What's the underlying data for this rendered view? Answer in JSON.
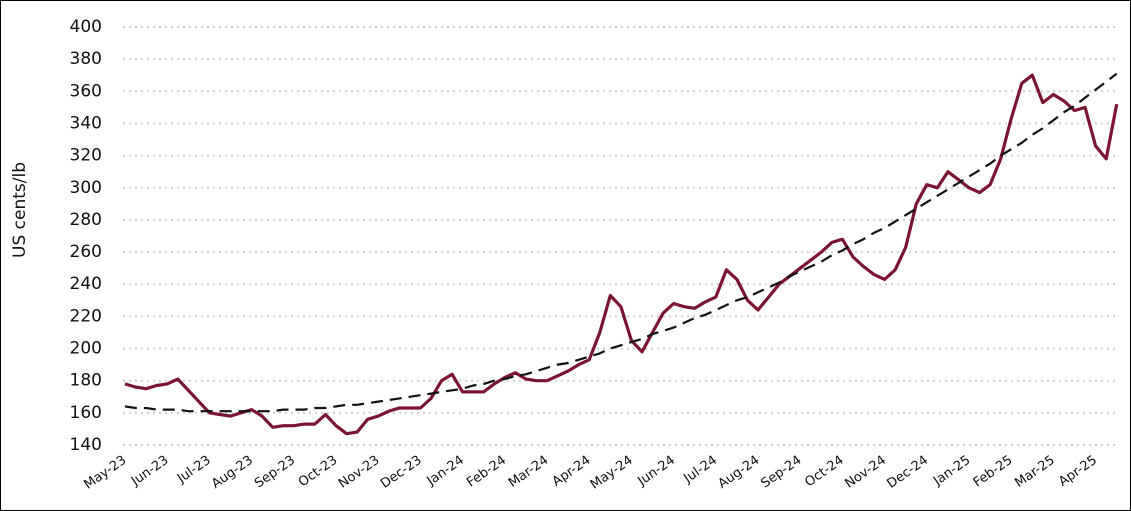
{
  "chart_data": {
    "type": "line",
    "y_label": "US cents/lb",
    "categories": [
      "May-23",
      null,
      null,
      null,
      "Jun-23",
      null,
      null,
      null,
      "Jul-23",
      null,
      null,
      null,
      "Aug-23",
      null,
      null,
      null,
      "Sep-23",
      null,
      null,
      null,
      "Oct-23",
      null,
      null,
      null,
      "Nov-23",
      null,
      null,
      null,
      "Dec-23",
      null,
      null,
      null,
      "Jan-24",
      null,
      null,
      null,
      "Feb-24",
      null,
      null,
      null,
      "Mar-24",
      null,
      null,
      null,
      "Apr-24",
      null,
      null,
      null,
      "May-24",
      null,
      null,
      null,
      "Jun-24",
      null,
      null,
      null,
      "Jul-24",
      null,
      null,
      null,
      "Aug-24",
      null,
      null,
      null,
      "Sep-24",
      null,
      null,
      null,
      "Oct-24",
      null,
      null,
      null,
      "Nov-24",
      null,
      null,
      null,
      "Dec-24",
      null,
      null,
      null,
      "Jan-25",
      null,
      null,
      null,
      "Feb-25",
      null,
      null,
      null,
      "Mar-25",
      null,
      null,
      null,
      "Apr-25",
      null,
      null
    ],
    "series": [
      {
        "color": "#7b1430",
        "dashed": false,
        "values": [
          178,
          176,
          175,
          177,
          178,
          181,
          174,
          167,
          160,
          159,
          158,
          160,
          162,
          158,
          151,
          152,
          152,
          153,
          153,
          159,
          152,
          147,
          148,
          156,
          158,
          161,
          163,
          163,
          163,
          169,
          180,
          184,
          173,
          173,
          173,
          178,
          182,
          185,
          181,
          180,
          180,
          183,
          186,
          190,
          193,
          210,
          233,
          226,
          205,
          198,
          210,
          222,
          228,
          226,
          225,
          229,
          232,
          249,
          243,
          230,
          224,
          232,
          240,
          245,
          250,
          255,
          260,
          266,
          268,
          257,
          251,
          246,
          243,
          249,
          263,
          290,
          302,
          300,
          310,
          305,
          300,
          297,
          302,
          318,
          343,
          365,
          370,
          353,
          358,
          354,
          348,
          350,
          326,
          318,
          352
        ]
      },
      {
        "color": "#111111",
        "dashed": true,
        "values": [
          164,
          163,
          163,
          162,
          162,
          162,
          161,
          161,
          161,
          161,
          161,
          161,
          161,
          161,
          161,
          162,
          162,
          162,
          163,
          163,
          164,
          165,
          165,
          166,
          167,
          168,
          169,
          170,
          171,
          172,
          173,
          174,
          175,
          177,
          178,
          180,
          181,
          183,
          184,
          186,
          188,
          190,
          191,
          193,
          195,
          197,
          200,
          202,
          204,
          206,
          209,
          211,
          213,
          216,
          219,
          221,
          224,
          227,
          230,
          232,
          235,
          238,
          241,
          245,
          248,
          251,
          254,
          258,
          261,
          265,
          268,
          272,
          275,
          279,
          283,
          287,
          291,
          295,
          299,
          303,
          307,
          311,
          315,
          320,
          324,
          328,
          333,
          337,
          342,
          347,
          351,
          356,
          361,
          366,
          371
        ]
      }
    ],
    "ylim": [
      140,
      400
    ],
    "yticks": [
      140,
      160,
      180,
      200,
      220,
      240,
      260,
      280,
      300,
      320,
      340,
      360,
      380,
      400
    ],
    "grid": true
  }
}
